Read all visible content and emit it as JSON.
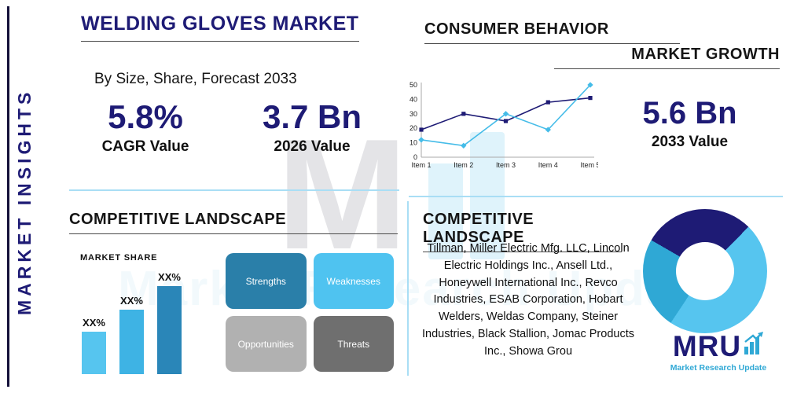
{
  "colors": {
    "navy": "#1e1b75",
    "accent_light": "#56c5ef",
    "accent_mid": "#2fa8d5",
    "accent_dark": "#2a86b8",
    "divider_blue": "#a9def5",
    "gray_light": "#b1b1b1",
    "gray_dark": "#6f6f6f",
    "text": "#111111"
  },
  "sidebar": {
    "label": "MARKET INSIGHTS"
  },
  "header": {
    "title": "WELDING GLOVES MARKET",
    "subtitle": "By Size, Share, Forecast 2033"
  },
  "stats": [
    {
      "value": "5.8%",
      "label": "CAGR Value"
    },
    {
      "value": "3.7 Bn",
      "label": "2026 Value"
    },
    {
      "value": "5.6 Bn",
      "label": "2033 Value"
    }
  ],
  "sections": {
    "consumer_behavior": "CONSUMER BEHAVIOR",
    "market_growth": "MARKET GROWTH",
    "competitive_left": "COMPETITIVE LANDSCAPE",
    "competitive_right": "COMPETITIVE LANDSCAPE",
    "market_share": "MARKET SHARE"
  },
  "chart_data": [
    {
      "type": "line",
      "title": "Market growth line chart",
      "x": [
        "Item 1",
        "Item 2",
        "Item 3",
        "Item 4",
        "Item 5"
      ],
      "series": [
        {
          "name": "series-dark",
          "color": "#1e1b75",
          "marker": "square",
          "values": [
            19,
            30,
            25,
            38,
            41
          ]
        },
        {
          "name": "series-light",
          "color": "#45bce8",
          "marker": "diamond",
          "values": [
            12,
            8,
            30,
            19,
            50
          ]
        }
      ],
      "ylim": [
        0,
        50
      ],
      "yticks": [
        0,
        10,
        20,
        30,
        40,
        50
      ],
      "grid": false,
      "legend": "none"
    },
    {
      "type": "bar",
      "title": "MARKET SHARE",
      "categories": [
        "XX%",
        "XX%",
        "XX%"
      ],
      "values": [
        30,
        45,
        62
      ],
      "colors": [
        "#56c5ef",
        "#3eb3e4",
        "#2a86b8"
      ],
      "ylim": [
        0,
        70
      ]
    },
    {
      "type": "pie",
      "title": "Competitive landscape donut",
      "donut": true,
      "start_angle": 300,
      "slices": [
        {
          "label": "segment-navy",
          "value": 29,
          "color": "#1e1b75"
        },
        {
          "label": "segment-light-blue",
          "value": 47,
          "color": "#56c5ef"
        },
        {
          "label": "segment-mid-blue",
          "value": 24,
          "color": "#2fa8d5"
        }
      ]
    }
  ],
  "swot": [
    {
      "label": "Strengths",
      "color": "#2a7fa9"
    },
    {
      "label": "Weaknesses",
      "color": "#4fc3f0"
    },
    {
      "label": "Opportunities",
      "color": "#b1b1b1"
    },
    {
      "label": "Threats",
      "color": "#6f6f6f"
    }
  ],
  "companies": "Tillman, Miller Electric Mfg. LLC, Lincoln Electric Holdings Inc., Ansell Ltd., Honeywell International Inc., Revco Industries, ESAB Corporation, Hobart Welders, Weldas Company, Steiner Industries, Black Stallion, Jomac Products Inc., Showa Grou",
  "logo": {
    "text": "MRU",
    "tagline": "Market Research Update",
    "icon": "growth-arrow-bars-icon"
  },
  "watermark": {
    "letter": "M",
    "text": "Market Research Update"
  }
}
